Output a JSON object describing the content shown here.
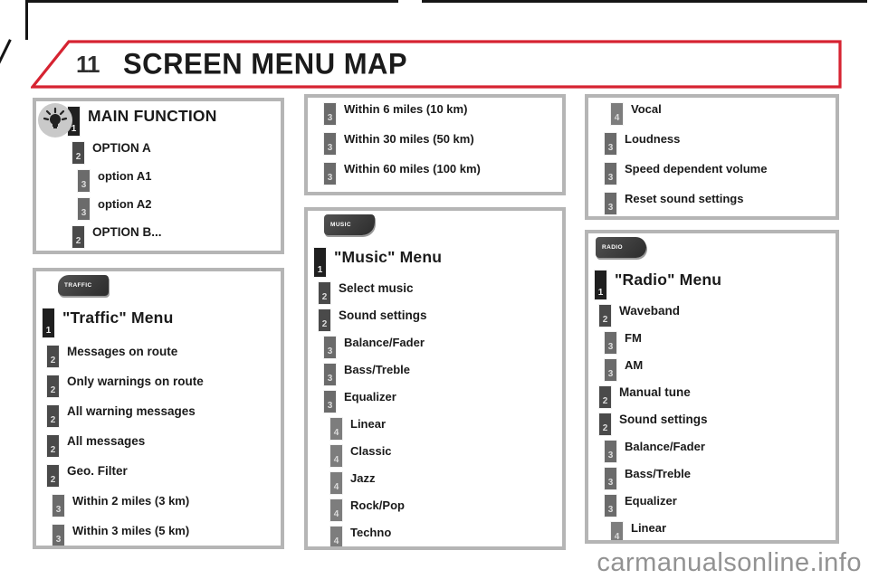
{
  "page": {
    "chapter_number": "11",
    "title": "SCREEN MENU MAP",
    "watermark": "carmanualsonline.info"
  },
  "colors": {
    "accent_red": "#d62331",
    "box_border": "#b5b5b5",
    "badge_level1": "#1f1f1f",
    "badge_level2": "#4a4a4a",
    "badge_level3": "#6b6b6b",
    "badge_level4": "#7d7d7d",
    "text": "#1a1a1a",
    "watermark_gray": "#929292"
  },
  "boxes": [
    {
      "id": "main-function",
      "icon": "bulb-icon",
      "items": [
        {
          "level": 1,
          "num": "1",
          "label": "MAIN FUNCTION",
          "title": true
        },
        {
          "level": 2,
          "num": "2",
          "label": "OPTION A"
        },
        {
          "level": 3,
          "num": "3",
          "label": "option A1"
        },
        {
          "level": 3,
          "num": "3",
          "label": "option A2"
        },
        {
          "level": 2,
          "num": "2",
          "label": "OPTION B..."
        }
      ]
    },
    {
      "id": "traffic-menu",
      "icon": "traffic-button-icon",
      "icon_label": "TRAFFIC",
      "items": [
        {
          "level": 1,
          "num": "1",
          "label": "\"Traffic\" Menu",
          "title": true
        },
        {
          "level": 2,
          "num": "2",
          "label": "Messages on route"
        },
        {
          "level": 2,
          "num": "2",
          "label": "Only warnings on route"
        },
        {
          "level": 2,
          "num": "2",
          "label": "All warning messages"
        },
        {
          "level": 2,
          "num": "2",
          "label": "All messages"
        },
        {
          "level": 2,
          "num": "2",
          "label": "Geo. Filter"
        },
        {
          "level": 3,
          "num": "3",
          "label": "Within 2 miles (3 km)"
        },
        {
          "level": 3,
          "num": "3",
          "label": "Within 3 miles (5 km)"
        }
      ]
    },
    {
      "id": "geo-distances",
      "items": [
        {
          "level": 3,
          "num": "3",
          "label": "Within 6 miles (10 km)"
        },
        {
          "level": 3,
          "num": "3",
          "label": "Within 30 miles (50 km)"
        },
        {
          "level": 3,
          "num": "3",
          "label": "Within 60 miles (100 km)"
        }
      ]
    },
    {
      "id": "music-menu",
      "icon": "music-button-icon",
      "icon_label": "MUSIC",
      "items": [
        {
          "level": 1,
          "num": "1",
          "label": "\"Music\" Menu",
          "title": true
        },
        {
          "level": 2,
          "num": "2",
          "label": "Select music"
        },
        {
          "level": 2,
          "num": "2",
          "label": "Sound settings"
        },
        {
          "level": 3,
          "num": "3",
          "label": "Balance/Fader"
        },
        {
          "level": 3,
          "num": "3",
          "label": "Bass/Treble"
        },
        {
          "level": 3,
          "num": "3",
          "label": "Equalizer"
        },
        {
          "level": 4,
          "num": "4",
          "label": "Linear"
        },
        {
          "level": 4,
          "num": "4",
          "label": "Classic"
        },
        {
          "level": 4,
          "num": "4",
          "label": "Jazz"
        },
        {
          "level": 4,
          "num": "4",
          "label": "Rock/Pop"
        },
        {
          "level": 4,
          "num": "4",
          "label": "Techno"
        }
      ]
    },
    {
      "id": "sound-options",
      "items": [
        {
          "level": 4,
          "num": "4",
          "label": "Vocal"
        },
        {
          "level": 3,
          "num": "3",
          "label": "Loudness"
        },
        {
          "level": 3,
          "num": "3",
          "label": "Speed dependent volume"
        },
        {
          "level": 3,
          "num": "3",
          "label": "Reset sound settings"
        }
      ]
    },
    {
      "id": "radio-menu",
      "icon": "radio-button-icon",
      "icon_label": "RADIO",
      "items": [
        {
          "level": 1,
          "num": "1",
          "label": "\"Radio\" Menu",
          "title": true
        },
        {
          "level": 2,
          "num": "2",
          "label": "Waveband"
        },
        {
          "level": 3,
          "num": "3",
          "label": "FM"
        },
        {
          "level": 3,
          "num": "3",
          "label": "AM"
        },
        {
          "level": 2,
          "num": "2",
          "label": "Manual tune"
        },
        {
          "level": 2,
          "num": "2",
          "label": "Sound settings"
        },
        {
          "level": 3,
          "num": "3",
          "label": "Balance/Fader"
        },
        {
          "level": 3,
          "num": "3",
          "label": "Bass/Treble"
        },
        {
          "level": 3,
          "num": "3",
          "label": "Equalizer"
        },
        {
          "level": 4,
          "num": "4",
          "label": "Linear"
        }
      ]
    }
  ]
}
